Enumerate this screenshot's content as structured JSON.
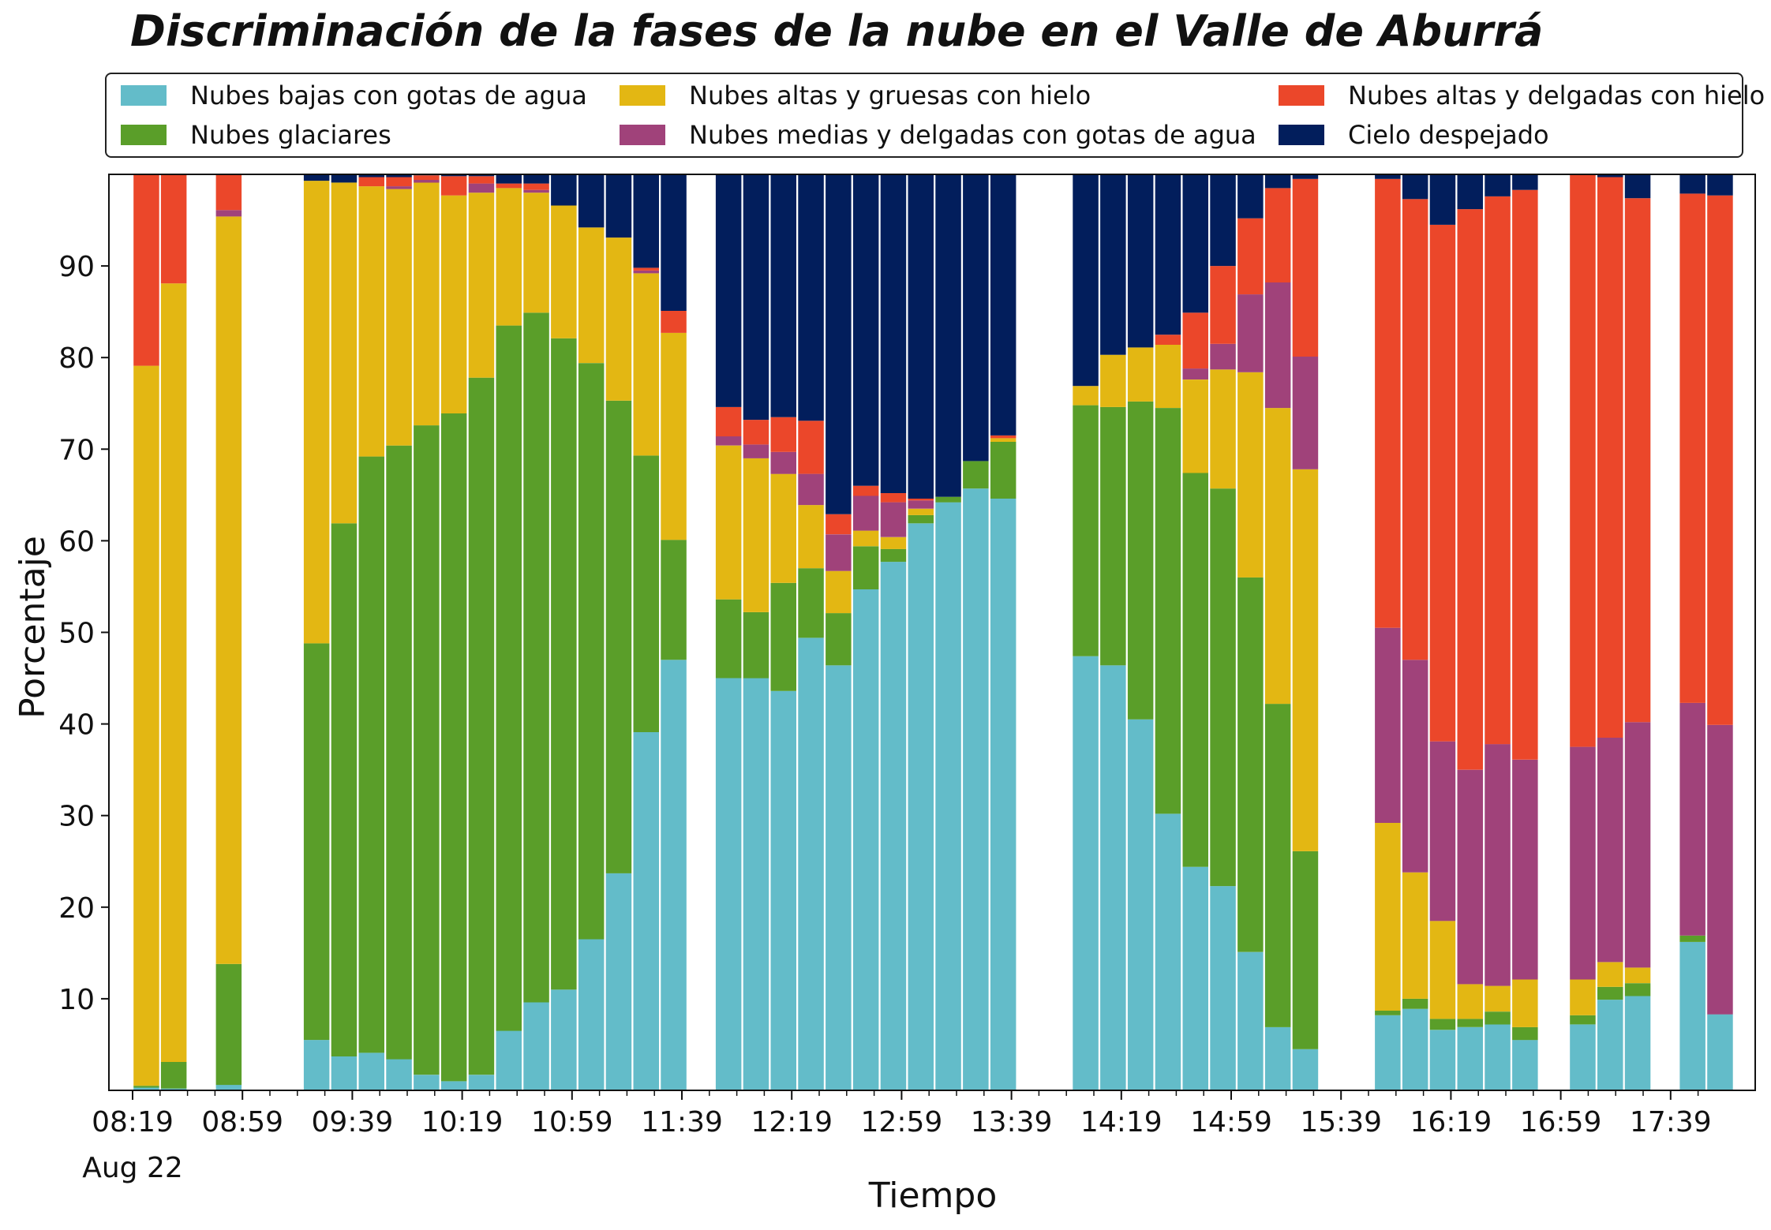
{
  "title": "Discriminación de la fases de la nube en el Valle de Aburrá",
  "legend": [
    {
      "name": "Nubes bajas con gotas de agua",
      "color": "#63BCC9"
    },
    {
      "name": "Nubes altas y gruesas con hielo",
      "color": "#E3B713"
    },
    {
      "name": "Nubes altas y delgadas con hielo",
      "color": "#EB472A"
    },
    {
      "name": "Nubes glaciares",
      "color": "#5A9E29"
    },
    {
      "name": "Nubes medias y delgadas con gotas de agua",
      "color": "#A0427A"
    },
    {
      "name": "Cielo despejado",
      "color": "#021E5C"
    }
  ],
  "chart_data": {
    "type": "bar",
    "stacked": true,
    "title": "Discriminación de la fases de la nube en el Valle de Aburrá",
    "xlabel": "Tiempo",
    "ylabel": "Porcentaje",
    "ylim": [
      0,
      100
    ],
    "yticks": [
      10,
      20,
      30,
      40,
      50,
      60,
      70,
      80,
      90
    ],
    "xlim_minutes": [
      0,
      575
    ],
    "xticks": [
      {
        "minutes": 0,
        "label": "08:19",
        "sublabel": "Aug 22"
      },
      {
        "minutes": 40,
        "label": "08:59"
      },
      {
        "minutes": 80,
        "label": "09:39"
      },
      {
        "minutes": 120,
        "label": "10:19"
      },
      {
        "minutes": 160,
        "label": "10:59"
      },
      {
        "minutes": 200,
        "label": "11:39"
      },
      {
        "minutes": 240,
        "label": "12:19"
      },
      {
        "minutes": 280,
        "label": "12:59"
      },
      {
        "minutes": 320,
        "label": "13:39"
      },
      {
        "minutes": 360,
        "label": "14:19"
      },
      {
        "minutes": 400,
        "label": "14:59"
      },
      {
        "minutes": 440,
        "label": "15:39"
      },
      {
        "minutes": 480,
        "label": "16:19"
      },
      {
        "minutes": 520,
        "label": "16:59"
      },
      {
        "minutes": 560,
        "label": "17:39"
      }
    ],
    "series_order": [
      "Nubes bajas con gotas de agua",
      "Nubes glaciares",
      "Nubes altas y gruesas con hielo",
      "Nubes medias y delgadas con gotas de agua",
      "Nubes altas y delgadas con hielo",
      "Cielo despejado"
    ],
    "series_colors": [
      "#63BCC9",
      "#5A9E29",
      "#E3B713",
      "#A0427A",
      "#EB472A",
      "#021E5C"
    ],
    "bars": [
      {
        "t": 5,
        "values": [
          0.3,
          0.2,
          78.6,
          0,
          21.0,
          0
        ]
      },
      {
        "t": 15,
        "values": [
          0.2,
          2.9,
          85.0,
          0,
          12.0,
          0
        ]
      },
      {
        "t": 35,
        "values": [
          0.6,
          13.2,
          81.6,
          0.7,
          4.0,
          0
        ]
      },
      {
        "t": 67,
        "values": [
          5.5,
          43.3,
          50.5,
          0,
          0,
          0.7
        ]
      },
      {
        "t": 77,
        "values": [
          3.7,
          58.2,
          37.2,
          0,
          0,
          0.9
        ]
      },
      {
        "t": 87,
        "values": [
          4.1,
          65.1,
          29.5,
          0,
          1.0,
          0.3
        ]
      },
      {
        "t": 97,
        "values": [
          3.4,
          67.0,
          28.0,
          0.3,
          1.0,
          0.3
        ]
      },
      {
        "t": 107,
        "values": [
          1.7,
          70.9,
          26.5,
          0.3,
          0.5,
          0.1
        ]
      },
      {
        "t": 117,
        "values": [
          1.0,
          72.9,
          23.8,
          0,
          2.1,
          0.2
        ]
      },
      {
        "t": 127,
        "values": [
          1.7,
          76.1,
          20.2,
          1.0,
          0.8,
          0.2
        ]
      },
      {
        "t": 137,
        "values": [
          6.5,
          77.0,
          15.0,
          0,
          0.5,
          1.0
        ]
      },
      {
        "t": 147,
        "values": [
          9.6,
          75.3,
          13.1,
          0.3,
          0.7,
          1.0
        ]
      },
      {
        "t": 157,
        "values": [
          11.0,
          71.1,
          14.5,
          0,
          0,
          3.4
        ]
      },
      {
        "t": 167,
        "values": [
          16.5,
          62.9,
          14.8,
          0,
          0,
          5.8
        ]
      },
      {
        "t": 177,
        "values": [
          23.7,
          51.6,
          17.8,
          0,
          0,
          6.9
        ]
      },
      {
        "t": 187,
        "values": [
          39.1,
          30.2,
          19.9,
          0.3,
          0.3,
          10.2
        ]
      },
      {
        "t": 197,
        "values": [
          47.0,
          13.1,
          22.6,
          0,
          2.4,
          14.9
        ]
      },
      {
        "t": 217,
        "values": [
          45.0,
          8.6,
          16.8,
          1.0,
          3.2,
          25.4
        ]
      },
      {
        "t": 227,
        "values": [
          45.0,
          7.2,
          16.8,
          1.5,
          2.7,
          26.8
        ]
      },
      {
        "t": 237,
        "values": [
          43.6,
          11.8,
          11.9,
          2.4,
          3.8,
          26.5
        ]
      },
      {
        "t": 247,
        "values": [
          49.4,
          7.6,
          6.9,
          3.4,
          5.8,
          26.9
        ]
      },
      {
        "t": 257,
        "values": [
          46.4,
          5.7,
          4.6,
          4.0,
          2.2,
          37.1
        ]
      },
      {
        "t": 267,
        "values": [
          54.7,
          4.7,
          1.7,
          3.8,
          1.1,
          34.0
        ]
      },
      {
        "t": 277,
        "values": [
          57.7,
          1.4,
          1.3,
          3.8,
          1.0,
          34.8
        ]
      },
      {
        "t": 287,
        "values": [
          61.9,
          0.9,
          0.7,
          0.9,
          0.2,
          35.4
        ]
      },
      {
        "t": 297,
        "values": [
          64.2,
          0.6,
          0,
          0,
          0,
          35.2
        ]
      },
      {
        "t": 307,
        "values": [
          65.7,
          3.0,
          0,
          0,
          0,
          31.3
        ]
      },
      {
        "t": 317,
        "values": [
          64.6,
          6.2,
          0.4,
          0,
          0.3,
          28.5
        ]
      },
      {
        "t": 347,
        "values": [
          47.4,
          27.4,
          2.1,
          0,
          0,
          23.1
        ]
      },
      {
        "t": 357,
        "values": [
          46.4,
          28.2,
          5.7,
          0,
          0,
          19.7
        ]
      },
      {
        "t": 367,
        "values": [
          40.5,
          34.7,
          5.9,
          0,
          0,
          18.9
        ]
      },
      {
        "t": 377,
        "values": [
          30.2,
          44.3,
          6.9,
          0,
          1.1,
          17.5
        ]
      },
      {
        "t": 387,
        "values": [
          24.4,
          43.0,
          10.2,
          1.2,
          6.1,
          15.1
        ]
      },
      {
        "t": 397,
        "values": [
          22.3,
          43.4,
          13.0,
          2.8,
          8.5,
          10.0
        ]
      },
      {
        "t": 407,
        "values": [
          15.1,
          40.9,
          22.4,
          8.5,
          8.3,
          4.8
        ]
      },
      {
        "t": 417,
        "values": [
          6.9,
          35.3,
          32.3,
          13.7,
          10.3,
          1.5
        ]
      },
      {
        "t": 427,
        "values": [
          4.5,
          21.6,
          41.7,
          12.3,
          19.4,
          0.5
        ]
      },
      {
        "t": 457,
        "values": [
          8.2,
          0.5,
          20.5,
          21.3,
          49.0,
          0.5
        ]
      },
      {
        "t": 467,
        "values": [
          8.9,
          1.1,
          13.8,
          23.2,
          50.3,
          2.7
        ]
      },
      {
        "t": 477,
        "values": [
          6.6,
          1.2,
          10.7,
          19.6,
          56.4,
          5.5
        ]
      },
      {
        "t": 487,
        "values": [
          6.9,
          0.9,
          3.8,
          23.4,
          61.2,
          3.8
        ]
      },
      {
        "t": 497,
        "values": [
          7.2,
          1.4,
          2.8,
          26.4,
          59.8,
          2.4
        ]
      },
      {
        "t": 507,
        "values": [
          5.5,
          1.4,
          5.2,
          24.0,
          62.2,
          1.7
        ]
      },
      {
        "t": 528,
        "values": [
          7.2,
          1.0,
          3.9,
          25.4,
          62.5,
          0
        ]
      },
      {
        "t": 538,
        "values": [
          9.9,
          1.4,
          2.7,
          24.5,
          61.2,
          0.3
        ]
      },
      {
        "t": 548,
        "values": [
          10.3,
          1.4,
          1.7,
          26.8,
          57.2,
          2.6
        ]
      },
      {
        "t": 568,
        "values": [
          16.2,
          0.7,
          0,
          25.4,
          55.6,
          2.1
        ]
      },
      {
        "t": 578,
        "values": [
          8.3,
          0,
          0,
          31.6,
          57.8,
          2.3
        ]
      }
    ]
  }
}
